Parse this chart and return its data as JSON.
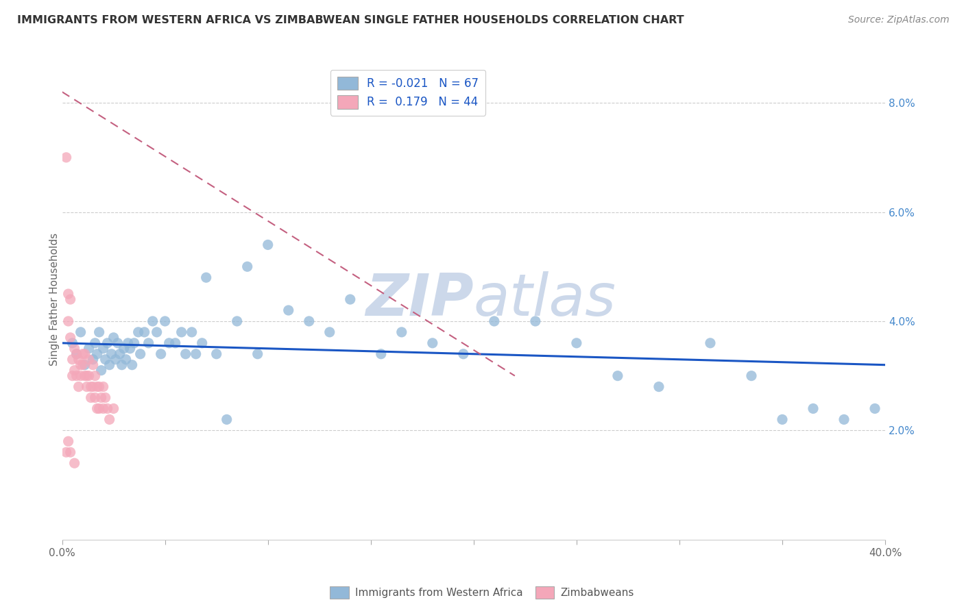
{
  "title": "IMMIGRANTS FROM WESTERN AFRICA VS ZIMBABWEAN SINGLE FATHER HOUSEHOLDS CORRELATION CHART",
  "source_text": "Source: ZipAtlas.com",
  "ylabel": "Single Father Households",
  "xlim": [
    0.0,
    0.4
  ],
  "ylim": [
    0.0,
    0.088
  ],
  "xtick_positions": [
    0.0,
    0.05,
    0.1,
    0.15,
    0.2,
    0.25,
    0.3,
    0.35,
    0.4
  ],
  "xticklabels": [
    "0.0%",
    "",
    "",
    "",
    "",
    "",
    "",
    "",
    "40.0%"
  ],
  "yticks_right": [
    0.02,
    0.04,
    0.06,
    0.08
  ],
  "ytick_right_labels": [
    "2.0%",
    "4.0%",
    "6.0%",
    "8.0%"
  ],
  "legend_blue_label": "Immigrants from Western Africa",
  "legend_pink_label": "Zimbabweans",
  "R_blue": -0.021,
  "N_blue": 67,
  "R_pink": 0.179,
  "N_pink": 44,
  "blue_color": "#92b8d8",
  "pink_color": "#f4a7b9",
  "trend_line_color_blue": "#1a56c4",
  "trend_line_color_pink": "#c46080",
  "watermark_color": "#ccd8ea",
  "background_color": "#ffffff",
  "blue_scatter_x": [
    0.005,
    0.007,
    0.009,
    0.011,
    0.013,
    0.015,
    0.016,
    0.017,
    0.018,
    0.019,
    0.02,
    0.021,
    0.022,
    0.023,
    0.024,
    0.025,
    0.026,
    0.027,
    0.028,
    0.029,
    0.03,
    0.031,
    0.032,
    0.033,
    0.034,
    0.035,
    0.037,
    0.038,
    0.04,
    0.042,
    0.044,
    0.046,
    0.048,
    0.05,
    0.052,
    0.055,
    0.058,
    0.06,
    0.063,
    0.065,
    0.068,
    0.07,
    0.075,
    0.08,
    0.085,
    0.09,
    0.095,
    0.1,
    0.11,
    0.12,
    0.13,
    0.14,
    0.155,
    0.165,
    0.18,
    0.195,
    0.21,
    0.23,
    0.25,
    0.27,
    0.29,
    0.315,
    0.335,
    0.35,
    0.365,
    0.38,
    0.395
  ],
  "blue_scatter_y": [
    0.036,
    0.034,
    0.038,
    0.032,
    0.035,
    0.033,
    0.036,
    0.034,
    0.038,
    0.031,
    0.035,
    0.033,
    0.036,
    0.032,
    0.034,
    0.037,
    0.033,
    0.036,
    0.034,
    0.032,
    0.035,
    0.033,
    0.036,
    0.035,
    0.032,
    0.036,
    0.038,
    0.034,
    0.038,
    0.036,
    0.04,
    0.038,
    0.034,
    0.04,
    0.036,
    0.036,
    0.038,
    0.034,
    0.038,
    0.034,
    0.036,
    0.048,
    0.034,
    0.022,
    0.04,
    0.05,
    0.034,
    0.054,
    0.042,
    0.04,
    0.038,
    0.044,
    0.034,
    0.038,
    0.036,
    0.034,
    0.04,
    0.04,
    0.036,
    0.03,
    0.028,
    0.036,
    0.03,
    0.022,
    0.024,
    0.022,
    0.024
  ],
  "pink_scatter_x": [
    0.002,
    0.003,
    0.003,
    0.004,
    0.004,
    0.005,
    0.005,
    0.006,
    0.006,
    0.007,
    0.007,
    0.008,
    0.008,
    0.009,
    0.009,
    0.01,
    0.01,
    0.011,
    0.011,
    0.012,
    0.012,
    0.013,
    0.013,
    0.014,
    0.014,
    0.015,
    0.015,
    0.016,
    0.016,
    0.017,
    0.017,
    0.018,
    0.018,
    0.019,
    0.02,
    0.02,
    0.021,
    0.022,
    0.023,
    0.025,
    0.002,
    0.003,
    0.004,
    0.006
  ],
  "pink_scatter_y": [
    0.07,
    0.045,
    0.04,
    0.044,
    0.037,
    0.033,
    0.03,
    0.035,
    0.031,
    0.034,
    0.03,
    0.033,
    0.028,
    0.032,
    0.03,
    0.034,
    0.032,
    0.034,
    0.03,
    0.03,
    0.028,
    0.033,
    0.03,
    0.028,
    0.026,
    0.032,
    0.028,
    0.03,
    0.026,
    0.028,
    0.024,
    0.028,
    0.024,
    0.026,
    0.028,
    0.024,
    0.026,
    0.024,
    0.022,
    0.024,
    0.016,
    0.018,
    0.016,
    0.014
  ],
  "blue_trend_x": [
    0.0,
    0.4
  ],
  "blue_trend_y": [
    0.036,
    0.032
  ],
  "pink_trend_x_start": 0.0,
  "pink_trend_x_end": 0.22,
  "pink_trend_y_start": 0.082,
  "pink_trend_y_end": 0.03
}
